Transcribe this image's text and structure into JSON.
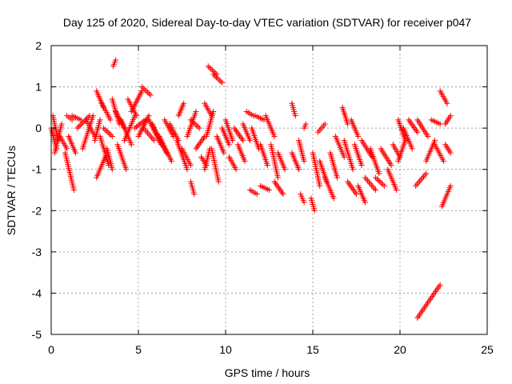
{
  "chart_data": {
    "type": "scatter",
    "title": "Day 125 of 2020, Sidereal Day-to-day VTEC variation (SDTVAR) for receiver p047",
    "xlabel": "GPS time / hours",
    "ylabel": "SDTVAR / TECUs",
    "xlim": [
      0,
      25
    ],
    "ylim": [
      -5,
      2
    ],
    "x_ticks": [
      "0",
      "5",
      "10",
      "15",
      "20",
      "25"
    ],
    "y_ticks": [
      "-5",
      "-4",
      "-3",
      "-2",
      "-1",
      "0",
      "1",
      "2"
    ],
    "grid": true,
    "marker": "plus",
    "marker_color": "#ff0000",
    "series": [
      {
        "name": "p047",
        "segments": [
          {
            "x": [
              0.0,
              0.3
            ],
            "y": [
              0.0,
              -0.5
            ]
          },
          {
            "x": [
              0.1,
              0.4
            ],
            "y": [
              0.3,
              -0.3
            ]
          },
          {
            "x": [
              0.2,
              0.6
            ],
            "y": [
              -0.6,
              0.1
            ]
          },
          {
            "x": [
              0.5,
              0.9
            ],
            "y": [
              -0.2,
              -0.5
            ]
          },
          {
            "x": [
              0.8,
              1.3
            ],
            "y": [
              -0.6,
              -1.5
            ]
          },
          {
            "x": [
              0.9,
              1.2
            ],
            "y": [
              0.3,
              0.2
            ]
          },
          {
            "x": [
              1.0,
              1.4
            ],
            "y": [
              -0.2,
              -0.6
            ]
          },
          {
            "x": [
              1.2,
              1.7
            ],
            "y": [
              0.3,
              0.2
            ]
          },
          {
            "x": [
              1.5,
              2.2
            ],
            "y": [
              0.0,
              0.3
            ]
          },
          {
            "x": [
              1.8,
              2.4
            ],
            "y": [
              -0.5,
              0.3
            ]
          },
          {
            "x": [
              2.0,
              2.5
            ],
            "y": [
              0.2,
              -0.2
            ]
          },
          {
            "x": [
              2.5,
              2.8
            ],
            "y": [
              -0.3,
              0.2
            ]
          },
          {
            "x": [
              2.6,
              3.0
            ],
            "y": [
              0.9,
              0.5
            ]
          },
          {
            "x": [
              2.6,
              3.1
            ],
            "y": [
              -1.2,
              -0.7
            ]
          },
          {
            "x": [
              2.8,
              3.3
            ],
            "y": [
              -0.2,
              -0.9
            ]
          },
          {
            "x": [
              2.9,
              3.4
            ],
            "y": [
              0.6,
              0.2
            ]
          },
          {
            "x": [
              3.0,
              3.5
            ],
            "y": [
              0.0,
              -0.2
            ]
          },
          {
            "x": [
              3.2,
              3.5
            ],
            "y": [
              -0.5,
              -1.0
            ]
          },
          {
            "x": [
              3.55,
              3.7
            ],
            "y": [
              1.5,
              1.65
            ]
          },
          {
            "x": [
              3.5,
              3.9
            ],
            "y": [
              0.7,
              0.1
            ]
          },
          {
            "x": [
              3.7,
              4.2
            ],
            "y": [
              0.4,
              0.0
            ]
          },
          {
            "x": [
              3.8,
              4.3
            ],
            "y": [
              -0.4,
              -1.0
            ]
          },
          {
            "x": [
              4.0,
              4.6
            ],
            "y": [
              0.2,
              -0.4
            ]
          },
          {
            "x": [
              4.2,
              4.8
            ],
            "y": [
              -0.3,
              0.3
            ]
          },
          {
            "x": [
              4.4,
              4.9
            ],
            "y": [
              0.7,
              0.3
            ]
          },
          {
            "x": [
              4.6,
              5.2
            ],
            "y": [
              0.4,
              0.9
            ]
          },
          {
            "x": [
              4.8,
              5.4
            ],
            "y": [
              0.0,
              0.2
            ]
          },
          {
            "x": [
              5.0,
              5.6
            ],
            "y": [
              -0.2,
              0.3
            ]
          },
          {
            "x": [
              5.2,
              5.7
            ],
            "y": [
              1.0,
              0.8
            ]
          },
          {
            "x": [
              5.3,
              5.9
            ],
            "y": [
              0.0,
              -0.3
            ]
          },
          {
            "x": [
              5.6,
              6.3
            ],
            "y": [
              0.2,
              -0.4
            ]
          },
          {
            "x": [
              5.8,
              6.6
            ],
            "y": [
              0.1,
              -0.6
            ]
          },
          {
            "x": [
              6.2,
              6.9
            ],
            "y": [
              -0.2,
              -0.8
            ]
          },
          {
            "x": [
              6.5,
              7.0
            ],
            "y": [
              0.2,
              -0.2
            ]
          },
          {
            "x": [
              6.8,
              7.3
            ],
            "y": [
              0.1,
              -0.3
            ]
          },
          {
            "x": [
              7.3,
              7.6
            ],
            "y": [
              0.3,
              0.6
            ]
          },
          {
            "x": [
              7.2,
              7.8
            ],
            "y": [
              -0.3,
              -1.0
            ]
          },
          {
            "x": [
              7.5,
              8.0
            ],
            "y": [
              -0.5,
              -0.9
            ]
          },
          {
            "x": [
              7.8,
              8.3
            ],
            "y": [
              -0.2,
              0.4
            ]
          },
          {
            "x": [
              8.0,
              8.2
            ],
            "y": [
              -1.3,
              -1.6
            ]
          },
          {
            "x": [
              8.0,
              8.5
            ],
            "y": [
              0.2,
              0.0
            ]
          },
          {
            "x": [
              8.3,
              8.8
            ],
            "y": [
              -0.5,
              -0.2
            ]
          },
          {
            "x": [
              8.6,
              8.9
            ],
            "y": [
              -0.7,
              -0.9
            ]
          },
          {
            "x": [
              8.8,
              9.2
            ],
            "y": [
              0.6,
              0.3
            ]
          },
          {
            "x": [
              8.8,
              9.1
            ],
            "y": [
              -1.0,
              -0.5
            ]
          },
          {
            "x": [
              8.9,
              9.3
            ],
            "y": [
              -0.2,
              0.4
            ]
          },
          {
            "x": [
              9.0,
              9.5
            ],
            "y": [
              1.5,
              1.3
            ]
          },
          {
            "x": [
              9.3,
              9.8
            ],
            "y": [
              1.3,
              1.1
            ]
          },
          {
            "x": [
              9.2,
              9.6
            ],
            "y": [
              -0.5,
              -1.3
            ]
          },
          {
            "x": [
              9.5,
              9.9
            ],
            "y": [
              -0.2,
              -0.6
            ]
          },
          {
            "x": [
              9.8,
              10.2
            ],
            "y": [
              0.0,
              -0.4
            ]
          },
          {
            "x": [
              10.0,
              10.4
            ],
            "y": [
              0.2,
              -0.3
            ]
          },
          {
            "x": [
              10.2,
              10.6
            ],
            "y": [
              -0.7,
              -1.0
            ]
          },
          {
            "x": [
              10.5,
              11.0
            ],
            "y": [
              0.0,
              -0.3
            ]
          },
          {
            "x": [
              10.7,
              11.1
            ],
            "y": [
              -0.4,
              -0.8
            ]
          },
          {
            "x": [
              11.0,
              11.4
            ],
            "y": [
              0.1,
              -0.3
            ]
          },
          {
            "x": [
              11.2,
              11.6
            ],
            "y": [
              0.4,
              0.3
            ]
          },
          {
            "x": [
              11.4,
              11.8
            ],
            "y": [
              -1.5,
              -1.6
            ]
          },
          {
            "x": [
              11.5,
              11.9
            ],
            "y": [
              0.0,
              -0.5
            ]
          },
          {
            "x": [
              11.7,
              12.2
            ],
            "y": [
              0.3,
              0.2
            ]
          },
          {
            "x": [
              12.0,
              12.5
            ],
            "y": [
              -1.4,
              -1.5
            ]
          },
          {
            "x": [
              12.0,
              12.4
            ],
            "y": [
              -0.4,
              -0.9
            ]
          },
          {
            "x": [
              12.3,
              12.8
            ],
            "y": [
              0.3,
              -0.2
            ]
          },
          {
            "x": [
              12.6,
              13.0
            ],
            "y": [
              -0.4,
              -1.2
            ]
          },
          {
            "x": [
              12.8,
              13.3
            ],
            "y": [
              -1.3,
              -1.6
            ]
          },
          {
            "x": [
              13.0,
              13.4
            ],
            "y": [
              -0.6,
              -1.0
            ]
          },
          {
            "x": [
              13.8,
              14.0
            ],
            "y": [
              0.6,
              0.3
            ]
          },
          {
            "x": [
              13.8,
              14.2
            ],
            "y": [
              -0.6,
              -1.0
            ]
          },
          {
            "x": [
              14.2,
              14.5
            ],
            "y": [
              -0.3,
              -0.8
            ]
          },
          {
            "x": [
              14.3,
              14.5
            ],
            "y": [
              -1.6,
              -1.8
            ]
          },
          {
            "x": [
              14.5,
              14.6
            ],
            "y": [
              0.0,
              0.1
            ]
          },
          {
            "x": [
              14.9,
              15.1
            ],
            "y": [
              -1.7,
              -2.0
            ]
          },
          {
            "x": [
              15.0,
              15.4
            ],
            "y": [
              -0.6,
              -1.4
            ]
          },
          {
            "x": [
              15.3,
              15.7
            ],
            "y": [
              -0.1,
              0.1
            ]
          },
          {
            "x": [
              15.4,
              15.8
            ],
            "y": [
              -0.8,
              -1.3
            ]
          },
          {
            "x": [
              15.7,
              16.2
            ],
            "y": [
              -1.2,
              -1.7
            ]
          },
          {
            "x": [
              16.0,
              16.4
            ],
            "y": [
              -0.6,
              -1.2
            ]
          },
          {
            "x": [
              16.3,
              16.8
            ],
            "y": [
              -0.2,
              -0.7
            ]
          },
          {
            "x": [
              16.7,
              17.0
            ],
            "y": [
              0.5,
              0.1
            ]
          },
          {
            "x": [
              16.8,
              17.3
            ],
            "y": [
              -0.3,
              -1.0
            ]
          },
          {
            "x": [
              17.0,
              17.5
            ],
            "y": [
              -1.3,
              -1.6
            ]
          },
          {
            "x": [
              17.2,
              17.6
            ],
            "y": [
              0.2,
              -0.2
            ]
          },
          {
            "x": [
              17.4,
              17.8
            ],
            "y": [
              -0.4,
              -0.9
            ]
          },
          {
            "x": [
              17.6,
              18.0
            ],
            "y": [
              -1.4,
              -1.8
            ]
          },
          {
            "x": [
              17.8,
              18.4
            ],
            "y": [
              -0.3,
              -0.7
            ]
          },
          {
            "x": [
              18.0,
              18.6
            ],
            "y": [
              -1.2,
              -1.5
            ]
          },
          {
            "x": [
              18.3,
              18.8
            ],
            "y": [
              -0.5,
              -1.1
            ]
          },
          {
            "x": [
              18.6,
              19.1
            ],
            "y": [
              -1.2,
              -1.4
            ]
          },
          {
            "x": [
              18.9,
              19.5
            ],
            "y": [
              -0.5,
              -0.9
            ]
          },
          {
            "x": [
              19.3,
              19.8
            ],
            "y": [
              -1.0,
              -1.5
            ]
          },
          {
            "x": [
              19.6,
              20.0
            ],
            "y": [
              -0.4,
              -0.7
            ]
          },
          {
            "x": [
              19.9,
              20.3
            ],
            "y": [
              0.2,
              -0.3
            ]
          },
          {
            "x": [
              19.9,
              20.3
            ],
            "y": [
              -0.8,
              -0.3
            ]
          },
          {
            "x": [
              20.2,
              20.7
            ],
            "y": [
              0.0,
              -0.5
            ]
          },
          {
            "x": [
              20.5,
              21.0
            ],
            "y": [
              0.2,
              -0.1
            ]
          },
          {
            "x": [
              20.9,
              21.5
            ],
            "y": [
              -1.4,
              -1.1
            ]
          },
          {
            "x": [
              21.0,
              21.6
            ],
            "y": [
              0.2,
              -0.2
            ]
          },
          {
            "x": [
              21.0,
              22.3
            ],
            "y": [
              -4.6,
              -3.8
            ]
          },
          {
            "x": [
              21.5,
              22.0
            ],
            "y": [
              -0.8,
              -0.3
            ]
          },
          {
            "x": [
              21.8,
              22.3
            ],
            "y": [
              0.2,
              0.1
            ]
          },
          {
            "x": [
              22.0,
              22.5
            ],
            "y": [
              -0.4,
              -0.8
            ]
          },
          {
            "x": [
              22.3,
              22.7
            ],
            "y": [
              0.9,
              0.6
            ]
          },
          {
            "x": [
              22.4,
              22.9
            ],
            "y": [
              -1.9,
              -1.4
            ]
          },
          {
            "x": [
              22.6,
              22.9
            ],
            "y": [
              0.1,
              0.3
            ]
          },
          {
            "x": [
              22.6,
              22.9
            ],
            "y": [
              -0.4,
              -0.6
            ]
          }
        ]
      }
    ]
  }
}
